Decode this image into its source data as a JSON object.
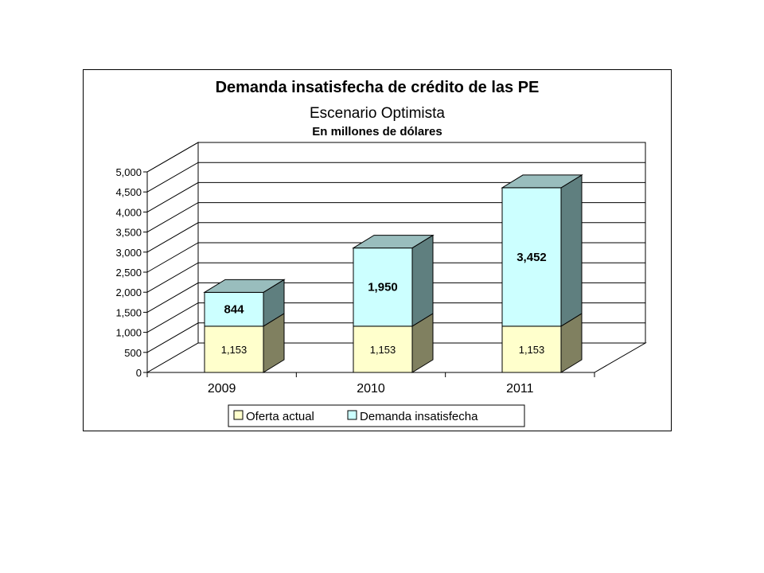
{
  "chart_data": {
    "type": "bar",
    "stacked": true,
    "three_d": true,
    "title": "Demanda insatisfecha de crédito de las PE",
    "subtitle": "Escenario Optimista",
    "subtitle2": "En millones de dólares",
    "categories": [
      "2009",
      "2010",
      "2011"
    ],
    "series": [
      {
        "name": "Oferta actual",
        "values": [
          1153,
          1153,
          1153
        ],
        "labels": [
          "1,153",
          "1,153",
          "1,153"
        ],
        "color": "#ffffcc",
        "side_color": "#808060",
        "top_color": "#b3b38f"
      },
      {
        "name": "Demanda insatisfecha",
        "values": [
          844,
          1950,
          3452
        ],
        "labels": [
          "844",
          "1,950",
          "3,452"
        ],
        "color": "#ccffff",
        "side_color": "#5f7f7f",
        "top_color": "#99bdbd"
      }
    ],
    "yticks": [
      "0",
      "500",
      "1,000",
      "1,500",
      "2,000",
      "2,500",
      "3,000",
      "3,500",
      "4,000",
      "4,500",
      "5,000"
    ],
    "ylim": [
      0,
      5000
    ],
    "grid": true,
    "legend_position": "bottom"
  }
}
